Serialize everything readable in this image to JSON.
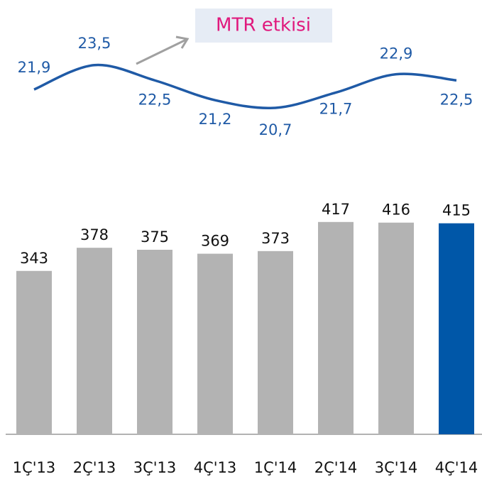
{
  "chart_data": {
    "type": "bar",
    "categories": [
      "1Ç'13",
      "2Ç'13",
      "3Ç'13",
      "4Ç'13",
      "1Ç'14",
      "2Ç'14",
      "3Ç'14",
      "4Ç'14"
    ],
    "ylim": [
      96,
      420
    ],
    "y2lim": [
      20,
      24
    ],
    "annotation": "MTR etkisi",
    "series": [
      {
        "name": null,
        "type": "bar",
        "colors": [
          "#b3b3b3",
          "#b3b3b3",
          "#b3b3b3",
          "#b3b3b3",
          "#b3b3b3",
          "#b3b3b3",
          "#b3b3b3",
          "#0057a8"
        ],
        "values": [
          343,
          378,
          375,
          369,
          373,
          417,
          416,
          415
        ]
      },
      {
        "name": null,
        "type": "line",
        "axis": "y2",
        "color": "#1f5aa6",
        "values": [
          21.9,
          23.5,
          22.5,
          21.2,
          20.7,
          21.7,
          22.9,
          22.5
        ],
        "value_labels": [
          "21,9",
          "23,5",
          "22,5",
          "21,2",
          "20,7",
          "21,7",
          "22,9",
          "22,5"
        ]
      }
    ]
  }
}
